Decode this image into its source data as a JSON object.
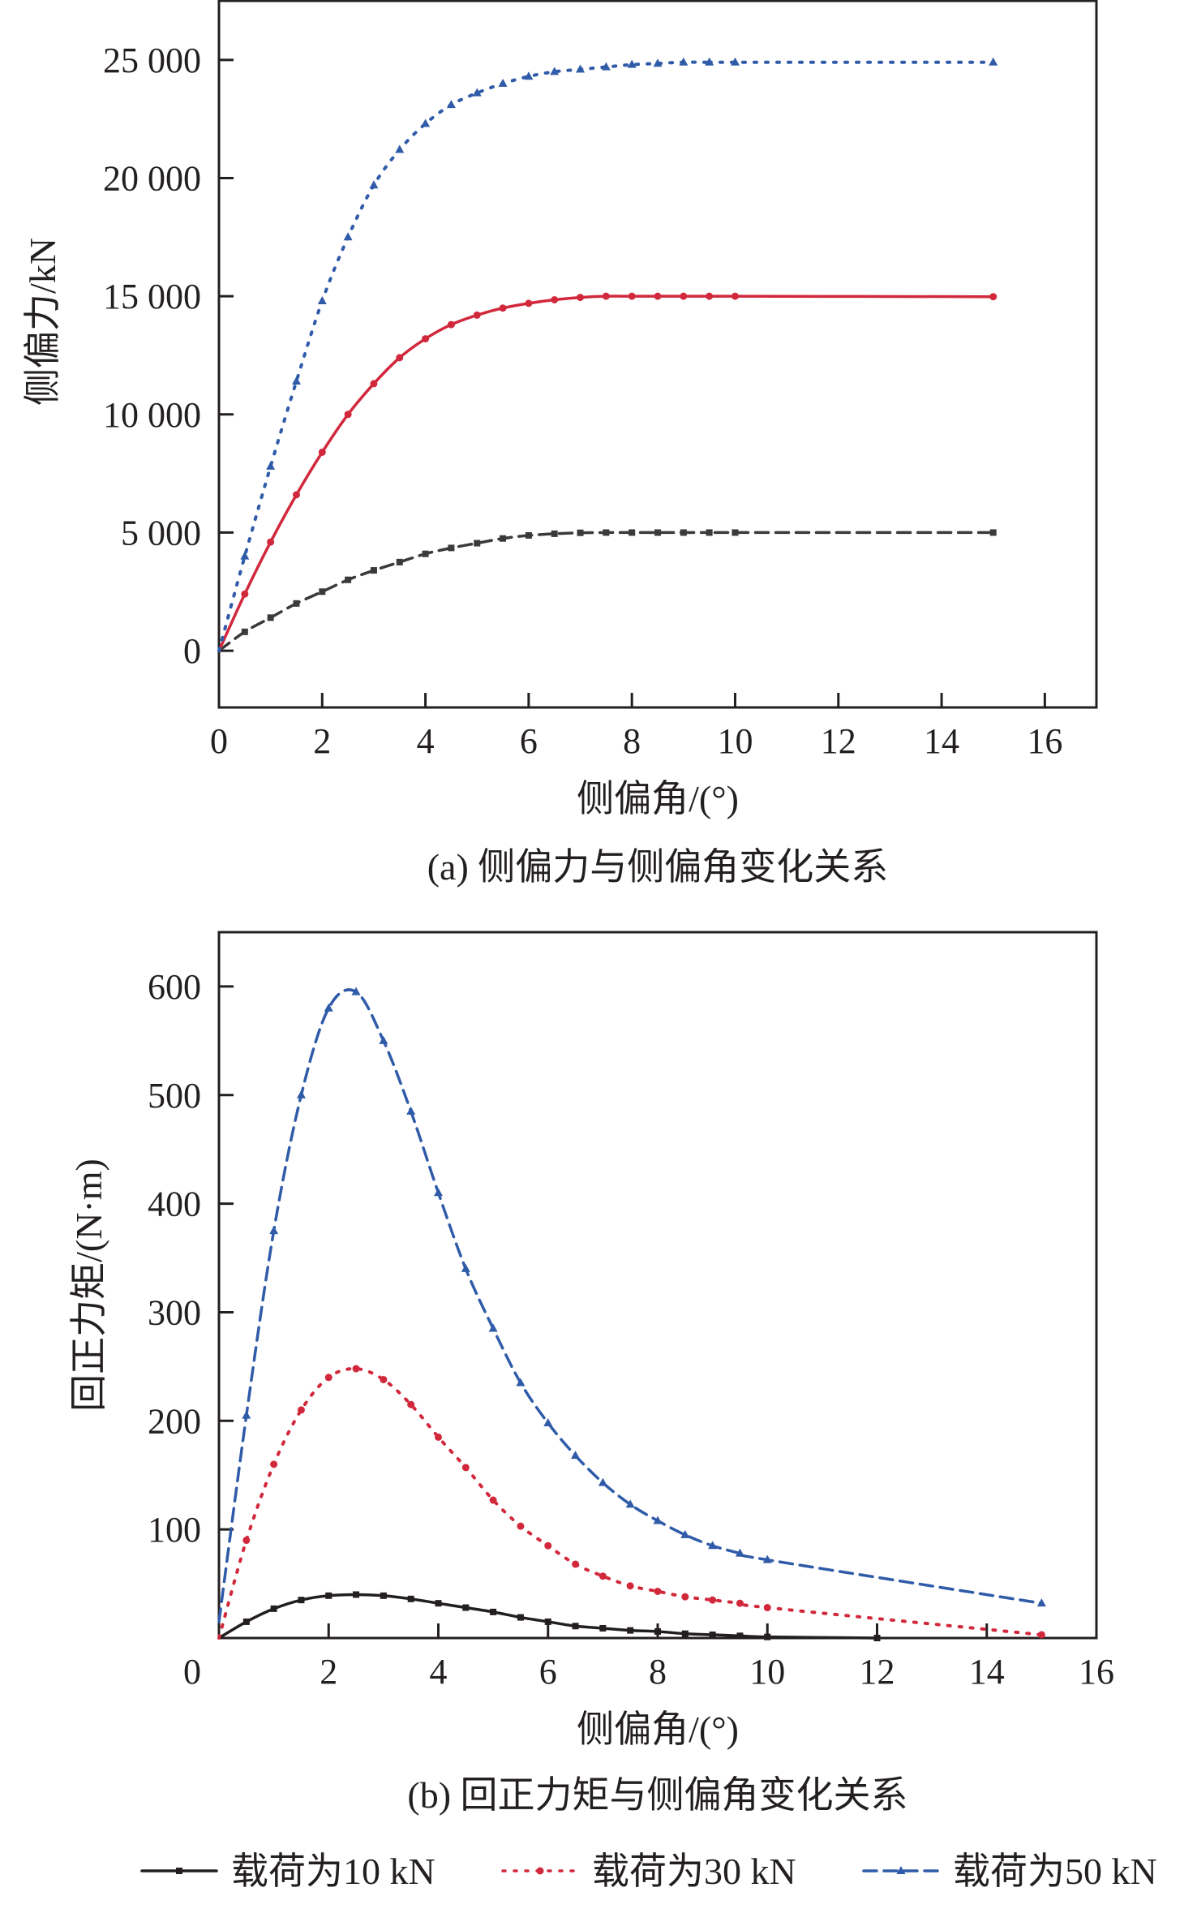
{
  "chart_data": [
    {
      "type": "line",
      "caption": "(a) 侧偏力与侧偏角变化关系",
      "xlabel": "侧偏角/(°)",
      "ylabel": "侧偏力/kN",
      "xlim": [
        0,
        17
      ],
      "ylim": [
        -2400,
        27500
      ],
      "xticks": [
        0,
        2,
        4,
        6,
        8,
        10,
        12,
        14,
        16
      ],
      "yticks": [
        0,
        5000,
        10000,
        15000,
        20000,
        25000
      ],
      "ytick_labels": [
        "0",
        "5 000",
        "10 000",
        "15 000",
        "20 000",
        "25 000"
      ],
      "grid": false,
      "series": [
        {
          "name": "载荷为10 kN",
          "color": "#3a3a3c",
          "style": "dashed",
          "marker": "square",
          "x": [
            0,
            0.5,
            1,
            1.5,
            2,
            2.5,
            3,
            3.5,
            4,
            4.5,
            5,
            5.5,
            6,
            6.5,
            7,
            7.5,
            8,
            8.5,
            9,
            9.5,
            10,
            15
          ],
          "y": [
            0,
            800,
            1400,
            2000,
            2500,
            3000,
            3400,
            3750,
            4100,
            4350,
            4550,
            4750,
            4880,
            4950,
            4990,
            5000,
            5000,
            5000,
            5000,
            5000,
            5000,
            5000
          ]
        },
        {
          "name": "载荷为30 kN",
          "color": "#d2283c",
          "style": "solid",
          "marker": "circle",
          "x": [
            0,
            0.5,
            1,
            1.5,
            2,
            2.5,
            3,
            3.5,
            4,
            4.5,
            5,
            5.5,
            6,
            6.5,
            7,
            7.5,
            8,
            8.5,
            9,
            9.5,
            10,
            15
          ],
          "y": [
            0,
            2400,
            4600,
            6600,
            8400,
            10000,
            11300,
            12400,
            13200,
            13800,
            14200,
            14500,
            14700,
            14850,
            14950,
            15000,
            15000,
            15000,
            15000,
            15000,
            15000,
            14980
          ]
        },
        {
          "name": "载荷为50 kN",
          "color": "#2f5ba8",
          "style": "dotted",
          "marker": "triangle",
          "x": [
            0,
            0.5,
            1,
            1.5,
            2,
            2.5,
            3,
            3.5,
            4,
            4.5,
            5,
            5.5,
            6,
            6.5,
            7,
            7.5,
            8,
            8.5,
            9,
            9.5,
            10,
            15
          ],
          "y": [
            0,
            4000,
            7800,
            11400,
            14800,
            17500,
            19700,
            21200,
            22300,
            23100,
            23600,
            24000,
            24300,
            24500,
            24600,
            24700,
            24800,
            24850,
            24900,
            24900,
            24900,
            24900
          ]
        }
      ]
    },
    {
      "type": "line",
      "caption": "(b) 回正力矩与侧偏角变化关系",
      "xlabel": "侧偏角/(°)",
      "ylabel": "回正力矩/(N·m)",
      "xlim": [
        0,
        16
      ],
      "ylim": [
        0,
        650
      ],
      "xticks": [
        0,
        2,
        4,
        6,
        8,
        10,
        12,
        14,
        16
      ],
      "yticks": [
        100,
        200,
        300,
        400,
        500,
        600
      ],
      "ytick_labels": [
        "100",
        "200",
        "300",
        "400",
        "500",
        "600"
      ],
      "grid": false,
      "series": [
        {
          "name": "载荷为10 kN",
          "color": "#231f20",
          "style": "solid",
          "marker": "square",
          "x": [
            0,
            0.5,
            1,
            1.5,
            2,
            2.5,
            3,
            3.5,
            4,
            4.5,
            5,
            5.5,
            6,
            6.5,
            7,
            7.5,
            8,
            8.5,
            9,
            9.5,
            10,
            12
          ],
          "y": [
            0,
            15,
            27,
            35,
            39,
            40,
            39,
            36,
            32,
            28,
            24,
            19,
            15,
            11,
            9,
            7,
            6,
            4,
            3,
            2,
            1,
            0
          ]
        },
        {
          "name": "载荷为30 kN",
          "color": "#d2283c",
          "style": "dotted",
          "marker": "circle",
          "x": [
            0,
            0.5,
            1,
            1.5,
            2,
            2.5,
            3,
            3.5,
            4,
            4.5,
            5,
            5.5,
            6,
            6.5,
            7,
            7.5,
            8,
            8.5,
            9,
            9.5,
            10,
            15
          ],
          "y": [
            0,
            90,
            160,
            210,
            240,
            248,
            238,
            215,
            185,
            157,
            127,
            103,
            85,
            68,
            57,
            48,
            43,
            38,
            35,
            32,
            28,
            3
          ]
        },
        {
          "name": "载荷为50 kN",
          "color": "#2f5ba8",
          "style": "dashed",
          "marker": "triangle",
          "x": [
            0,
            0.5,
            1,
            1.5,
            2,
            2.5,
            3,
            3.5,
            4,
            4.5,
            5,
            5.5,
            6,
            6.5,
            7,
            7.5,
            8,
            8.5,
            9,
            9.5,
            10,
            15
          ],
          "y": [
            15,
            205,
            375,
            500,
            580,
            595,
            550,
            485,
            410,
            340,
            285,
            235,
            198,
            168,
            143,
            123,
            108,
            95,
            85,
            78,
            72,
            32
          ]
        }
      ]
    }
  ],
  "legend": {
    "placement": "bottom",
    "items": [
      {
        "label": "载荷为10 kN",
        "color": "#231f20",
        "style": "solid"
      },
      {
        "label": "载荷为30 kN",
        "color": "#d2283c",
        "style": "dotted"
      },
      {
        "label": "载荷为50 kN",
        "color": "#2f5ba8",
        "style": "dashed"
      }
    ]
  }
}
